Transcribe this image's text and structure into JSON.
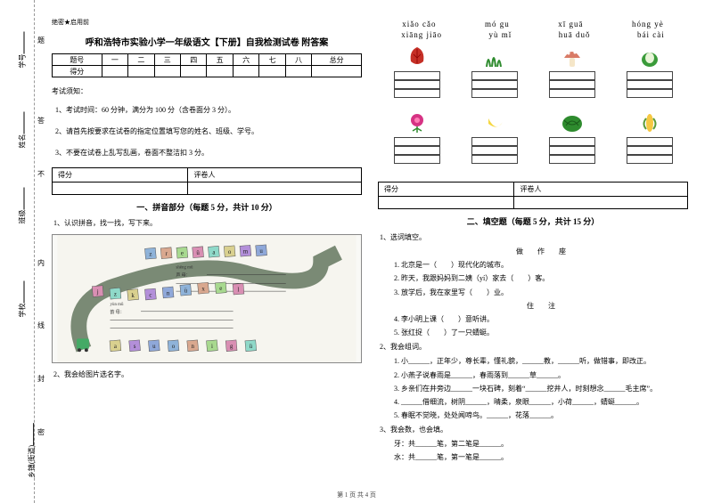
{
  "binding": {
    "labels": [
      "学号",
      "姓名",
      "班级",
      "学校",
      "乡镇(街道)"
    ],
    "marks": [
      "题",
      "答",
      "不",
      "内",
      "线",
      "封",
      "密"
    ]
  },
  "secrecy": "绝密★启用前",
  "title": "呼和浩特市实验小学一年级语文【下册】自我检测试卷 附答案",
  "scoreTable": {
    "headers": [
      "题号",
      "一",
      "二",
      "三",
      "四",
      "五",
      "六",
      "七",
      "八",
      "总分"
    ],
    "row": "得分"
  },
  "noticeHeader": "考试须知：",
  "notices": [
    "1、考试时间：60 分钟，满分为 100 分（含卷面分 3 分）。",
    "2、请首先按要求在试卷的指定位置填写您的姓名、班级、学号。",
    "3、不要在试卷上乱写乱画，卷面不整洁扣 3 分。"
  ],
  "scoreBox": {
    "h1": "得分",
    "h2": "评卷人"
  },
  "sec1": {
    "title": "一、拼音部分（每题 5 分，共计 10 分）",
    "q1": "1、认识拼音，找一找，写下来。",
    "q2": "2、我会给图片选名字。",
    "snake": {
      "sheng": "shēng mǔ",
      "shengLabel": "声 母：",
      "yun": "yùn mǔ",
      "yunLabel": "韵 母：",
      "topBlocks": [
        "z",
        "r",
        "e",
        "ü",
        "a",
        "o",
        "m",
        "u"
      ],
      "midBlocks": [
        "j",
        "z",
        "k",
        "c",
        "n",
        "ü",
        "x",
        "e",
        "l"
      ],
      "botBlocks": [
        "a",
        "s",
        "u",
        "o",
        "n",
        "i",
        "g",
        "ü"
      ]
    }
  },
  "pinyinWords": {
    "row1": [
      "xiǎo cǎo",
      "mó gu",
      "xī guā",
      "hóng yè"
    ],
    "row2": [
      "xiāng jiāo",
      "yù mǐ",
      "huā duǒ",
      "bái cài"
    ]
  },
  "icons": {
    "row1": [
      "leaf",
      "grass",
      "mushroom",
      "cabbage"
    ],
    "row2": [
      "rose",
      "banana",
      "watermelon",
      "corn"
    ]
  },
  "sec2": {
    "title": "二、填空题（每题 5 分，共计 15 分）",
    "q1": "1、选词填空。",
    "q1opts": "做　　作　　座",
    "q1items": [
      "1. 北京是一（　　）现代化的城市。",
      "2. 昨天，我跟妈妈到二姨（yí）家去（　　）客。",
      "3. 放学后，我在家里写（　　）业。"
    ],
    "q1opts2": "住　　注",
    "q1items2": [
      "4. 李小明上课（　　）意听讲。",
      "5. 张红捉（　　）了一只蜻蜓。"
    ],
    "q2": "2、我会组词。",
    "q2items": [
      "1. 小______，正年少，尊长辈，懂礼貌，______教，______听，做错事，即改正。",
      "2. 小燕子说春雨是______，春雨落到______草______。",
      "3. 乡亲们在井旁边______一块石碑，刻着“______挖井人，时刻想念______毛主席”。",
      "4. ______借细流，树阴______，晴柔，泉眼______，小荷______，蜻蜓______。",
      "5. 春眠不觉晓，处处闻啼鸟。______，花落______。"
    ],
    "q3": "3、我会数，也会填。",
    "q3items": [
      "牙：共______笔，第二笔是______。",
      "水：共______笔，第一笔是______。"
    ]
  },
  "footer": "第 1 页 共 4 页"
}
